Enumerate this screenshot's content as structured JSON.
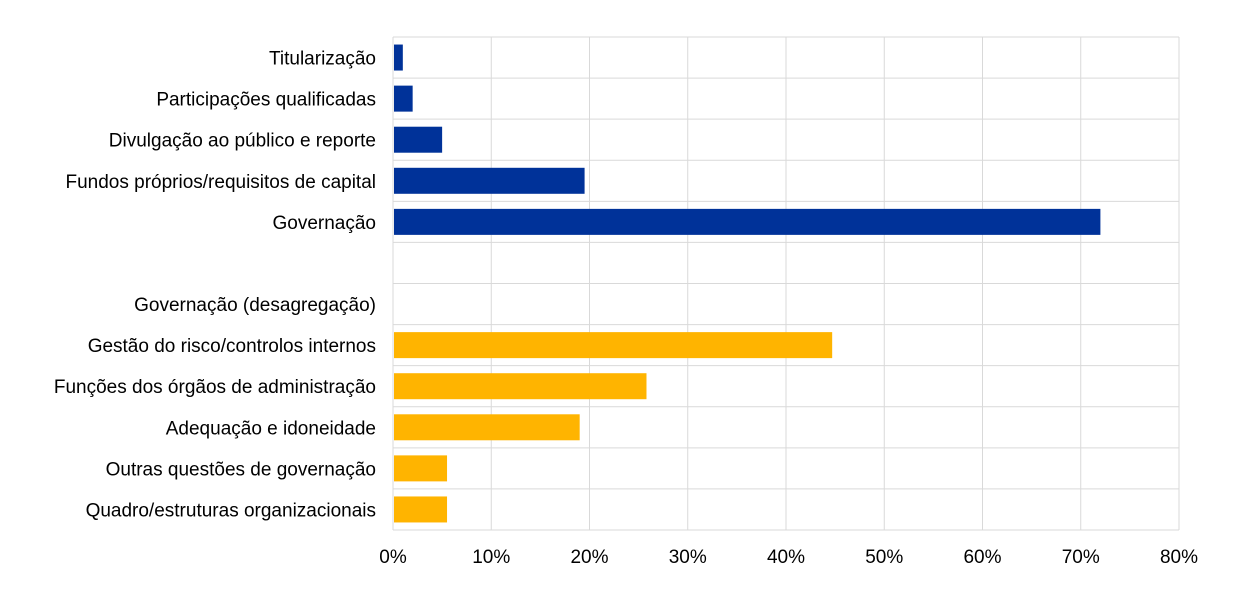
{
  "chart_data": {
    "type": "bar",
    "orientation": "horizontal",
    "categories": [
      "Titularização",
      "Participações qualificadas",
      "Divulgação ao público e reporte",
      "Fundos próprios/requisitos de capital",
      "Governação",
      "",
      "Governação (desagregação)",
      "Gestão do risco/controlos internos",
      "Funções dos órgãos de administração",
      "Adequação e idoneidade",
      "Outras questões de governação",
      "Quadro/estruturas organizacionais"
    ],
    "values": [
      1,
      2,
      5,
      19.5,
      72,
      null,
      null,
      44.7,
      25.8,
      19,
      5.5,
      5.5
    ],
    "bar_colors": [
      "#003299",
      "#003299",
      "#003299",
      "#003299",
      "#003299",
      null,
      null,
      "#ffb400",
      "#ffb400",
      "#ffb400",
      "#ffb400",
      "#ffb400"
    ],
    "xlim": [
      0,
      80
    ],
    "x_ticks": [
      "0%",
      "10%",
      "20%",
      "30%",
      "40%",
      "50%",
      "60%",
      "70%",
      "80%"
    ],
    "grid": true,
    "legend": "none"
  }
}
